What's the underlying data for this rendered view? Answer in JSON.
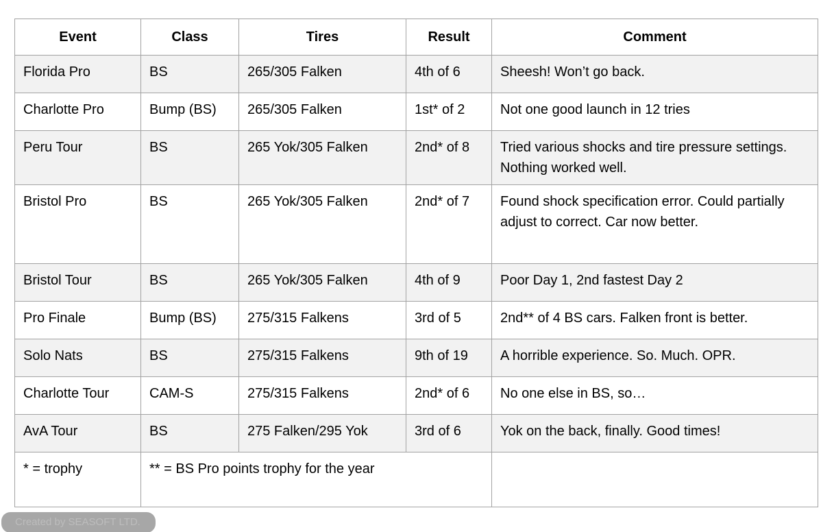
{
  "table": {
    "columns": [
      "Event",
      "Class",
      "Tires",
      "Result",
      "Comment"
    ],
    "rows": [
      {
        "event": "Florida Pro",
        "car_class": "BS",
        "tires": "265/305 Falken",
        "result": "4th of 6",
        "comment": "Sheesh! Won’t go back."
      },
      {
        "event": "Charlotte Pro",
        "car_class": "Bump (BS)",
        "tires": "265/305 Falken",
        "result": "1st* of 2",
        "comment": "Not one good launch in 12 tries"
      },
      {
        "event": "Peru Tour",
        "car_class": "BS",
        "tires": "265 Yok/305 Falken",
        "result": "2nd* of 8",
        "comment": "Tried various shocks and tire pressure settings. Nothing worked well."
      },
      {
        "event": "Bristol Pro",
        "car_class": "BS",
        "tires": "265 Yok/305 Falken",
        "result": "2nd* of 7",
        "comment": "Found shock specification error. Could partially adjust to correct. Car now better."
      },
      {
        "event": "Bristol Tour",
        "car_class": "BS",
        "tires": "265 Yok/305 Falken",
        "result": "4th of 9",
        "comment": "Poor Day 1, 2nd fastest Day 2"
      },
      {
        "event": "Pro Finale",
        "car_class": "Bump (BS)",
        "tires": "275/315 Falkens",
        "result": "3rd of 5",
        "comment": "2nd** of 4 BS cars. Falken front is better."
      },
      {
        "event": "Solo Nats",
        "car_class": "BS",
        "tires": "275/315 Falkens",
        "result": "9th of 19",
        "comment": "A horrible experience. So. Much. OPR."
      },
      {
        "event": "Charlotte Tour",
        "car_class": "CAM-S",
        "tires": "275/315 Falkens",
        "result": "2nd* of 6",
        "comment": "No one else in BS, so…"
      },
      {
        "event": "AvA Tour",
        "car_class": "BS",
        "tires": "275 Falken/295 Yok",
        "result": "3rd of 6",
        "comment": "Yok on the back, finally. Good times!"
      }
    ],
    "footer": {
      "trophy_note": "* = trophy",
      "points_note": "** = BS Pro points trophy for the year",
      "comment_note": ""
    },
    "colors": {
      "border": "#a2a2a2",
      "stripe": "#f2f2f2",
      "row": "#ffffff",
      "text": "#000000"
    }
  },
  "badge": {
    "label": "Created by SEASOFT LTD.",
    "background": "#a7a7a7",
    "foreground": "#bdbdbd"
  }
}
